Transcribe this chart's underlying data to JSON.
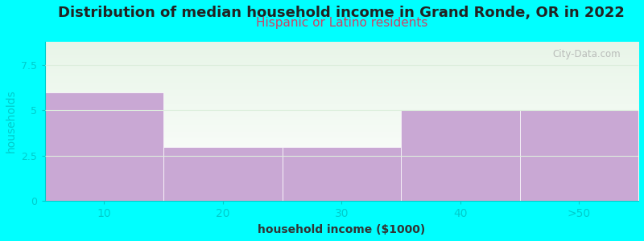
{
  "title": "Distribution of median household income in Grand Ronde, OR in 2022",
  "subtitle": "Hispanic or Latino residents",
  "categories": [
    "10",
    "20",
    "30",
    "40",
    ">50"
  ],
  "values": [
    6,
    3,
    3,
    5,
    5
  ],
  "bar_color": "#C9A8D4",
  "background_color": "#00FFFF",
  "plot_bg_top": "#E8F5E8",
  "plot_bg_bottom": "#FFFFFF",
  "xlabel": "household income ($1000)",
  "ylabel": "households",
  "ylim": [
    0,
    8.8
  ],
  "yticks": [
    0,
    2.5,
    5,
    7.5
  ],
  "title_fontsize": 13,
  "subtitle_fontsize": 11,
  "subtitle_color": "#CC4466",
  "xlabel_fontsize": 10,
  "ylabel_fontsize": 10,
  "tick_color": "#00CCCC",
  "watermark": "City-Data.com",
  "grid_color": "#DDEEDD"
}
